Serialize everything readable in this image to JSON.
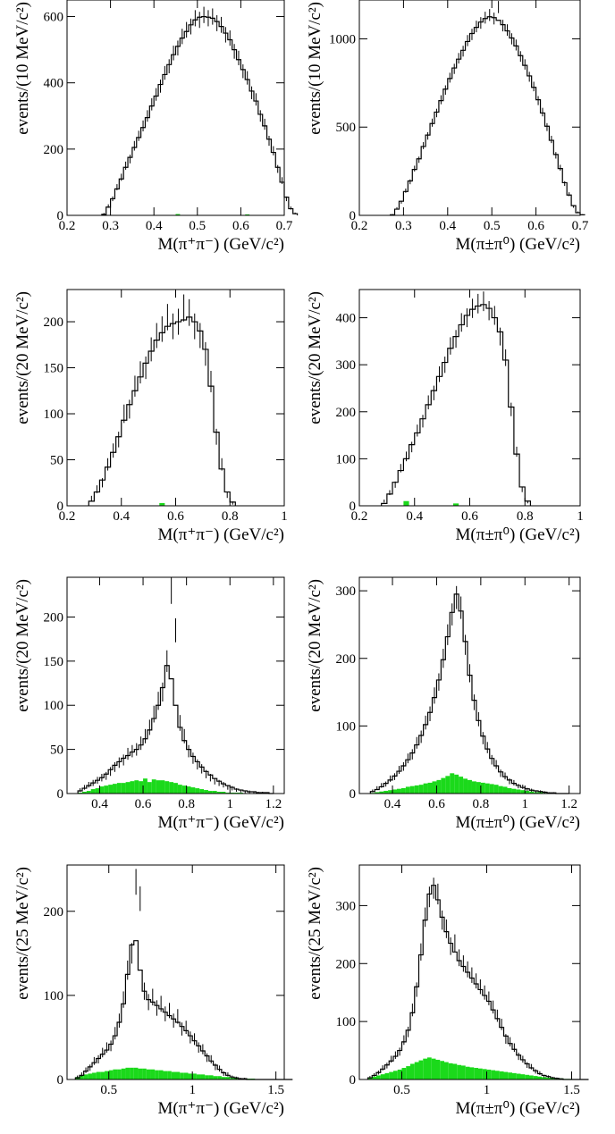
{
  "page": {
    "background": "#ffffff"
  },
  "style": {
    "axis_color": "#000000",
    "mc_color": "#000000",
    "data_color": "#000000",
    "background_color": "#1bd91b"
  },
  "chart_data": [
    {
      "type": "histogram",
      "ylabel": "events/(10 MeV/c²)",
      "xlabel": "M(π⁺π⁻) (GeV/c²)",
      "xlim": [
        0.2,
        0.7
      ],
      "ylim": [
        0,
        650
      ],
      "xticks": [
        "0.2",
        "0.3",
        "0.4",
        "0.5",
        "0.6",
        "0.7"
      ],
      "xtick_values": [
        0.2,
        0.3,
        0.4,
        0.5,
        0.6,
        0.7
      ],
      "yticks": [
        "0",
        "200",
        "400",
        "600"
      ],
      "ytick_values": [
        0,
        200,
        400,
        600
      ],
      "bin_width": 0.01,
      "x_start": 0.28,
      "mc": [
        3,
        25,
        50,
        80,
        110,
        145,
        175,
        205,
        235,
        265,
        295,
        330,
        360,
        395,
        425,
        455,
        485,
        510,
        535,
        555,
        575,
        590,
        598,
        600,
        598,
        595,
        585,
        570,
        550,
        530,
        500,
        470,
        440,
        410,
        375,
        345,
        305,
        270,
        230,
        190,
        145,
        100,
        55,
        20,
        5
      ],
      "data": [
        5,
        28,
        50,
        85,
        115,
        150,
        170,
        210,
        240,
        270,
        300,
        335,
        365,
        390,
        430,
        450,
        490,
        505,
        540,
        560,
        570,
        595,
        590,
        605,
        595,
        600,
        580,
        575,
        545,
        535,
        495,
        475,
        435,
        415,
        370,
        350,
        300,
        275,
        225,
        195,
        140,
        105,
        50,
        22,
        6
      ],
      "bkg": [
        0,
        0,
        0,
        0,
        0,
        0,
        0,
        0,
        0,
        0,
        0,
        0,
        0,
        0,
        0,
        0,
        0,
        4,
        0,
        0,
        0,
        0,
        0,
        0,
        0,
        0,
        0,
        0,
        0,
        0,
        0,
        0,
        0,
        3,
        0,
        0,
        0,
        0,
        0,
        0,
        0,
        0,
        0,
        0,
        0
      ]
    },
    {
      "type": "histogram",
      "ylabel": "events/(10 MeV/c²)",
      "xlabel": "M(π±π⁰) (GeV/c²)",
      "xlim": [
        0.2,
        0.7
      ],
      "ylim": [
        0,
        1220
      ],
      "xticks": [
        "0.2",
        "0.3",
        "0.4",
        "0.5",
        "0.6",
        "0.7"
      ],
      "xtick_values": [
        0.2,
        0.3,
        0.4,
        0.5,
        0.6,
        0.7
      ],
      "yticks": [
        "0",
        "500",
        "1000"
      ],
      "ytick_values": [
        0,
        500,
        1000
      ],
      "bin_width": 0.01,
      "x_start": 0.27,
      "mc": [
        3,
        35,
        80,
        135,
        195,
        260,
        320,
        390,
        455,
        520,
        585,
        650,
        715,
        775,
        835,
        885,
        935,
        985,
        1030,
        1065,
        1095,
        1115,
        1125,
        1120,
        1105,
        1080,
        1045,
        1005,
        960,
        905,
        850,
        790,
        725,
        655,
        580,
        505,
        425,
        345,
        265,
        185,
        115,
        55,
        15,
        3
      ],
      "data": [
        5,
        40,
        75,
        140,
        190,
        265,
        315,
        395,
        450,
        525,
        580,
        655,
        710,
        780,
        830,
        890,
        930,
        990,
        1025,
        1070,
        1090,
        1120,
        1135,
        1115,
        1180,
        1075,
        1050,
        1000,
        965,
        900,
        855,
        785,
        730,
        650,
        585,
        500,
        430,
        340,
        270,
        180,
        120,
        50,
        18,
        4
      ],
      "bkg": [
        0,
        0,
        0,
        0,
        0,
        0,
        0,
        0,
        0,
        0,
        0,
        0,
        0,
        0,
        0,
        0,
        0,
        0,
        0,
        0,
        0,
        0,
        0,
        0,
        0,
        0,
        0,
        0,
        0,
        0,
        0,
        0,
        0,
        0,
        0,
        0,
        0,
        0,
        0,
        0,
        0,
        0,
        0,
        0
      ]
    },
    {
      "type": "histogram",
      "ylabel": "events/(20 MeV/c²)",
      "xlabel": "M(π⁺π⁻) (GeV/c²)",
      "xlim": [
        0.2,
        1.0
      ],
      "ylim": [
        0,
        235
      ],
      "xticks": [
        "0.2",
        "0.4",
        "0.6",
        "0.8",
        "1"
      ],
      "xtick_values": [
        0.2,
        0.4,
        0.6,
        0.8,
        1.0
      ],
      "yticks": [
        "0",
        "50",
        "100",
        "150",
        "200"
      ],
      "ytick_values": [
        0,
        50,
        100,
        150,
        200
      ],
      "bin_width": 0.02,
      "x_start": 0.28,
      "mc": [
        5,
        15,
        28,
        42,
        58,
        75,
        93,
        110,
        125,
        140,
        155,
        168,
        180,
        188,
        195,
        198,
        200,
        202,
        205,
        200,
        190,
        170,
        130,
        80,
        40,
        15,
        4
      ],
      "data": [
        8,
        18,
        25,
        45,
        60,
        72,
        100,
        105,
        130,
        145,
        150,
        170,
        185,
        192,
        205,
        195,
        200,
        215,
        210,
        195,
        185,
        165,
        135,
        75,
        45,
        12,
        3
      ],
      "bkg": [
        0,
        0,
        0,
        0,
        0,
        0,
        0,
        0,
        0,
        0,
        0,
        0,
        0,
        3,
        0,
        0,
        0,
        0,
        0,
        0,
        0,
        0,
        0,
        0,
        0,
        0,
        0
      ]
    },
    {
      "type": "histogram",
      "ylabel": "events/(20 MeV/c²)",
      "xlabel": "M(π±π⁰) (GeV/c²)",
      "xlim": [
        0.2,
        1.0
      ],
      "ylim": [
        0,
        460
      ],
      "xticks": [
        "0.2",
        "0.4",
        "0.6",
        "0.8",
        "1"
      ],
      "xtick_values": [
        0.2,
        0.4,
        0.6,
        0.8,
        1.0
      ],
      "yticks": [
        "0",
        "100",
        "200",
        "300",
        "400"
      ],
      "ytick_values": [
        0,
        100,
        200,
        300,
        400
      ],
      "bin_width": 0.02,
      "x_start": 0.28,
      "mc": [
        5,
        25,
        50,
        75,
        100,
        130,
        155,
        185,
        215,
        245,
        275,
        305,
        335,
        360,
        385,
        405,
        418,
        425,
        428,
        420,
        400,
        370,
        310,
        210,
        110,
        40,
        10
      ],
      "data": [
        10,
        28,
        45,
        80,
        105,
        125,
        160,
        180,
        220,
        240,
        280,
        300,
        340,
        355,
        390,
        400,
        420,
        430,
        435,
        415,
        405,
        360,
        315,
        205,
        115,
        35,
        8
      ],
      "bkg": [
        0,
        0,
        0,
        0,
        10,
        0,
        0,
        0,
        0,
        0,
        0,
        0,
        0,
        5,
        0,
        0,
        0,
        0,
        0,
        0,
        0,
        0,
        0,
        0,
        0,
        0,
        0
      ]
    },
    {
      "type": "histogram",
      "ylabel": "events/(20 MeV/c²)",
      "xlabel": "M(π⁺π⁻) (GeV/c²)",
      "xlim": [
        0.25,
        1.25
      ],
      "ylim": [
        0,
        245
      ],
      "xticks": [
        "0.4",
        "0.6",
        "0.8",
        "1",
        "1.2"
      ],
      "xtick_values": [
        0.4,
        0.6,
        0.8,
        1.0,
        1.2
      ],
      "yticks": [
        "0",
        "50",
        "100",
        "150",
        "200"
      ],
      "ytick_values": [
        0,
        50,
        100,
        150,
        200
      ],
      "bin_width": 0.02,
      "x_start": 0.3,
      "mc": [
        3,
        6,
        9,
        12,
        15,
        18,
        22,
        27,
        32,
        36,
        40,
        43,
        47,
        50,
        55,
        62,
        72,
        85,
        100,
        120,
        145,
        130,
        100,
        75,
        60,
        50,
        42,
        36,
        30,
        25,
        21,
        17,
        14,
        11,
        9,
        7,
        5,
        4,
        3,
        2,
        2,
        1,
        1,
        1,
        0
      ],
      "data": [
        4,
        7,
        10,
        12,
        15,
        18,
        20,
        25,
        30,
        35,
        38,
        45,
        48,
        50,
        57,
        65,
        75,
        90,
        105,
        115,
        150,
        230,
        185,
        80,
        65,
        48,
        40,
        33,
        28,
        22,
        18,
        14,
        12,
        10,
        7,
        6,
        4,
        3,
        2,
        2,
        1,
        1,
        1,
        0,
        0
      ],
      "bkg": [
        1,
        2,
        3,
        5,
        6,
        8,
        9,
        10,
        11,
        12,
        12,
        13,
        14,
        15,
        14,
        17,
        13,
        16,
        15,
        15,
        14,
        13,
        12,
        10,
        9,
        8,
        7,
        6,
        5,
        4,
        3,
        3,
        2,
        2,
        1,
        1,
        1,
        1,
        0,
        0,
        0,
        0,
        0,
        0,
        0
      ]
    },
    {
      "type": "histogram",
      "ylabel": "events/(20 MeV/c²)",
      "xlabel": "M(π±π⁰) (GeV/c²)",
      "xlim": [
        0.25,
        1.25
      ],
      "ylim": [
        0,
        320
      ],
      "xticks": [
        "0.4",
        "0.6",
        "0.8",
        "1",
        "1.2"
      ],
      "xtick_values": [
        0.4,
        0.6,
        0.8,
        1.0,
        1.2
      ],
      "yticks": [
        "0",
        "100",
        "200",
        "300"
      ],
      "ytick_values": [
        0,
        100,
        200,
        300
      ],
      "bin_width": 0.02,
      "x_start": 0.3,
      "mc": [
        3,
        6,
        10,
        15,
        20,
        26,
        33,
        41,
        50,
        60,
        72,
        86,
        102,
        120,
        142,
        168,
        198,
        232,
        268,
        295,
        270,
        225,
        175,
        138,
        108,
        85,
        66,
        52,
        41,
        32,
        25,
        20,
        15,
        12,
        9,
        7,
        5,
        4,
        3,
        2,
        1,
        1,
        0,
        0,
        0
      ],
      "data": [
        4,
        8,
        12,
        14,
        22,
        25,
        35,
        40,
        52,
        58,
        75,
        84,
        105,
        118,
        145,
        165,
        200,
        235,
        265,
        290,
        275,
        220,
        178,
        135,
        110,
        82,
        68,
        50,
        43,
        30,
        26,
        18,
        16,
        11,
        10,
        6,
        5,
        3,
        3,
        2,
        1,
        1,
        0,
        0,
        0
      ],
      "bkg": [
        1,
        2,
        3,
        4,
        5,
        6,
        7,
        8,
        10,
        11,
        12,
        13,
        15,
        16,
        18,
        20,
        23,
        26,
        30,
        28,
        25,
        22,
        20,
        18,
        17,
        16,
        15,
        14,
        13,
        11,
        10,
        8,
        7,
        6,
        5,
        4,
        3,
        2,
        2,
        1,
        1,
        0,
        0,
        0,
        0
      ]
    },
    {
      "type": "histogram",
      "ylabel": "events/(25 MeV/c²)",
      "xlabel": "M(π⁺π⁻) (GeV/c²)",
      "xlim": [
        0.25,
        1.55
      ],
      "ylim": [
        0,
        255
      ],
      "xticks": [
        "0.5",
        "1",
        "1.5"
      ],
      "xtick_values": [
        0.5,
        1.0,
        1.5
      ],
      "yticks": [
        "0",
        "100",
        "200"
      ],
      "ytick_values": [
        0,
        100,
        200
      ],
      "bin_width": 0.025,
      "x_start": 0.3,
      "mc": [
        2,
        5,
        10,
        15,
        20,
        25,
        30,
        35,
        42,
        52,
        68,
        90,
        125,
        160,
        165,
        130,
        105,
        95,
        92,
        88,
        84,
        80,
        76,
        72,
        68,
        63,
        58,
        52,
        46,
        40,
        34,
        28,
        22,
        17,
        12,
        8,
        5,
        3,
        2,
        1,
        1,
        0,
        0,
        0,
        0,
        0,
        0,
        0,
        0,
        0,
        0,
        0
      ],
      "data": [
        3,
        6,
        11,
        14,
        22,
        24,
        32,
        38,
        40,
        55,
        70,
        95,
        130,
        150,
        235,
        215,
        105,
        92,
        98,
        85,
        90,
        78,
        82,
        70,
        75,
        60,
        62,
        50,
        48,
        38,
        36,
        26,
        24,
        15,
        13,
        7,
        6,
        3,
        2,
        1,
        1,
        0,
        0,
        0,
        0,
        0,
        0,
        0,
        0,
        0,
        0,
        0
      ],
      "bkg": [
        3,
        5,
        6,
        7,
        8,
        9,
        9,
        10,
        11,
        12,
        12,
        13,
        14,
        14,
        14,
        13,
        13,
        12,
        12,
        11,
        11,
        10,
        10,
        9,
        9,
        8,
        8,
        7,
        7,
        6,
        6,
        5,
        5,
        4,
        4,
        3,
        3,
        2,
        2,
        1,
        1,
        1,
        1,
        0,
        0,
        0,
        0,
        0,
        0,
        0,
        0,
        0
      ]
    },
    {
      "type": "histogram",
      "ylabel": "events/(25 MeV/c²)",
      "xlabel": "M(π±π⁰) (GeV/c²)",
      "xlim": [
        0.25,
        1.55
      ],
      "ylim": [
        0,
        370
      ],
      "xticks": [
        "0.5",
        "1",
        "1.5"
      ],
      "xtick_values": [
        0.5,
        1.0,
        1.5
      ],
      "yticks": [
        "0",
        "100",
        "200",
        "300"
      ],
      "ytick_values": [
        0,
        100,
        200,
        300
      ],
      "bin_width": 0.025,
      "x_start": 0.3,
      "mc": [
        3,
        7,
        12,
        18,
        25,
        32,
        40,
        50,
        65,
        85,
        115,
        160,
        215,
        275,
        320,
        335,
        310,
        280,
        255,
        235,
        220,
        205,
        195,
        185,
        175,
        165,
        155,
        145,
        135,
        120,
        105,
        90,
        75,
        62,
        52,
        42,
        34,
        27,
        20,
        15,
        10,
        7,
        5,
        3,
        2,
        1,
        0,
        0,
        0,
        0,
        0,
        0
      ],
      "data": [
        4,
        8,
        12,
        20,
        24,
        35,
        42,
        48,
        68,
        82,
        120,
        155,
        220,
        280,
        315,
        330,
        320,
        275,
        260,
        230,
        235,
        210,
        200,
        190,
        180,
        170,
        160,
        150,
        140,
        125,
        110,
        95,
        70,
        65,
        55,
        40,
        35,
        25,
        22,
        14,
        11,
        6,
        5,
        3,
        2,
        1,
        0,
        0,
        0,
        0,
        0,
        0
      ],
      "bkg": [
        3,
        5,
        7,
        9,
        11,
        13,
        15,
        17,
        20,
        23,
        27,
        30,
        33,
        36,
        38,
        36,
        34,
        32,
        30,
        28,
        27,
        25,
        24,
        22,
        21,
        20,
        19,
        18,
        17,
        16,
        15,
        14,
        13,
        12,
        11,
        10,
        9,
        8,
        7,
        6,
        5,
        4,
        3,
        3,
        2,
        2,
        1,
        1,
        0,
        0,
        0,
        0
      ]
    }
  ]
}
